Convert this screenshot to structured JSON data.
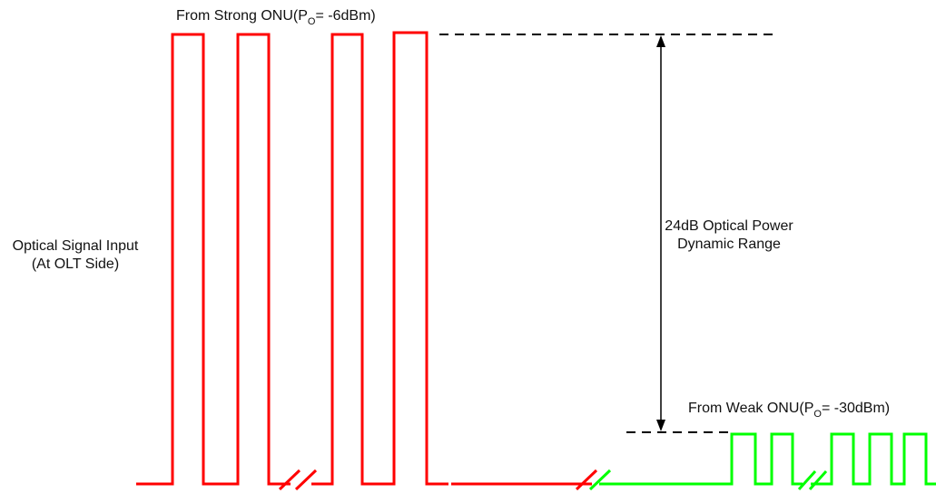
{
  "colors": {
    "strong_signal": "#ff0000",
    "weak_signal": "#00ff00",
    "reference": "#000000",
    "text": "#111111"
  },
  "labels": {
    "strong_onu": {
      "prefix": "From Strong ONU(P",
      "subscript": "O",
      "suffix": "= -6dBm)"
    },
    "weak_onu": {
      "prefix": "From Weak ONU(P",
      "subscript": "O",
      "suffix": "= -30dBm)"
    },
    "input_line1": "Optical Signal Input",
    "input_line2": "(At OLT Side)",
    "range_line1": "24dB Optical Power",
    "range_line2": "Dynamic Range"
  }
}
